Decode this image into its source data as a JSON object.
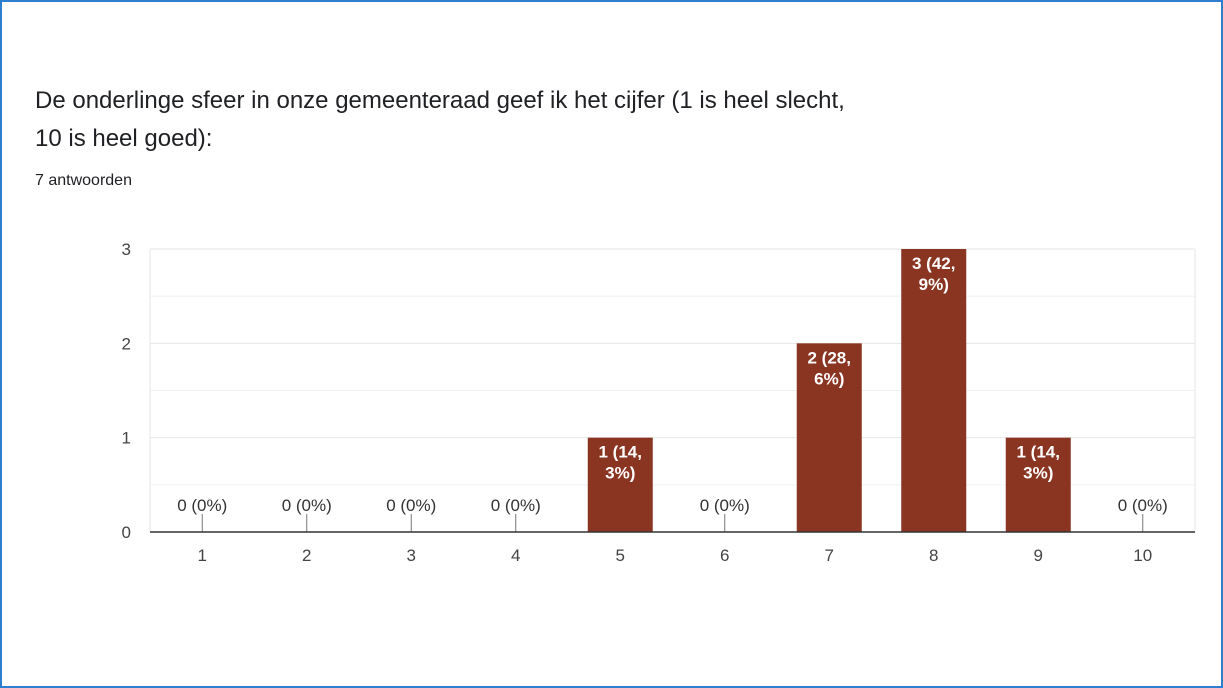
{
  "question": {
    "title": "De onderlinge sfeer in onze gemeenteraad geef ik het cijfer (1 is heel slecht, 10 is heel goed):",
    "responses": "7 antwoorden"
  },
  "colors": {
    "bar": "#8a3422",
    "frame": "#2f7fd1"
  },
  "chart_data": {
    "type": "bar",
    "categories": [
      "1",
      "2",
      "3",
      "4",
      "5",
      "6",
      "7",
      "8",
      "9",
      "10"
    ],
    "values": [
      0,
      0,
      0,
      0,
      1,
      0,
      2,
      3,
      1,
      0
    ],
    "data_labels": [
      [
        "0 (0%)"
      ],
      [
        "0 (0%)"
      ],
      [
        "0 (0%)"
      ],
      [
        "0 (0%)"
      ],
      [
        "1 (14,",
        "3%)"
      ],
      [
        "0 (0%)"
      ],
      [
        "2 (28,",
        "6%)"
      ],
      [
        "3 (42,",
        "9%)"
      ],
      [
        "1 (14,",
        "3%)"
      ],
      [
        "0 (0%)"
      ]
    ],
    "title": "",
    "xlabel": "",
    "ylabel": "",
    "ylim": [
      0,
      3
    ],
    "yticks": [
      "0",
      "1",
      "2",
      "3"
    ],
    "grid": true,
    "legend": "none"
  }
}
